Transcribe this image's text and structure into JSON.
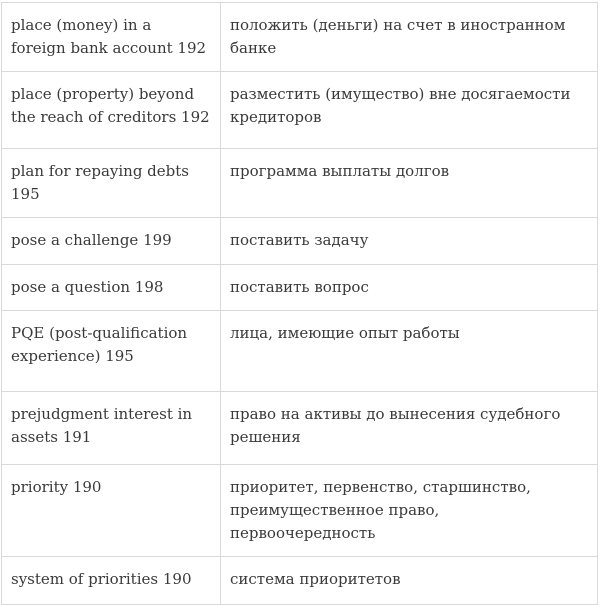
{
  "colors": {
    "border": "#d9d9d9",
    "text": "#3a3a3c",
    "background": "#ffffff"
  },
  "table": {
    "description": "English-Russian legal glossary table with page numbers",
    "columns": [
      "english_term",
      "russian_translation"
    ],
    "rows": [
      {
        "en": "place (money) in a foreign bank account 192",
        "ru": "положить (деньги) на счет в иностранном банке"
      },
      {
        "en": "place (property) beyond the reach of creditors 192",
        "ru": "разместить (имущество) вне досягаемости кредиторов"
      },
      {
        "en": "plan for repaying debts 195",
        "ru": "программа выплаты долгов"
      },
      {
        "en": "pose a challenge 199",
        "ru": "поставить задачу"
      },
      {
        "en": "pose a question 198",
        "ru": "поставить вопрос"
      },
      {
        "en": "PQE (post-qualification experience) 195",
        "ru": "лица, имеющие опыт работы"
      },
      {
        "en": "prejudgment interest in assets 191",
        "ru": "право на активы до вынесения судебного решения"
      },
      {
        "en": "priority 190",
        "ru": "приоритет, первенство, старшинство, преимущественное право, первоочередность"
      },
      {
        "en": "system of priorities 190",
        "ru": "система приоритетов"
      }
    ]
  }
}
